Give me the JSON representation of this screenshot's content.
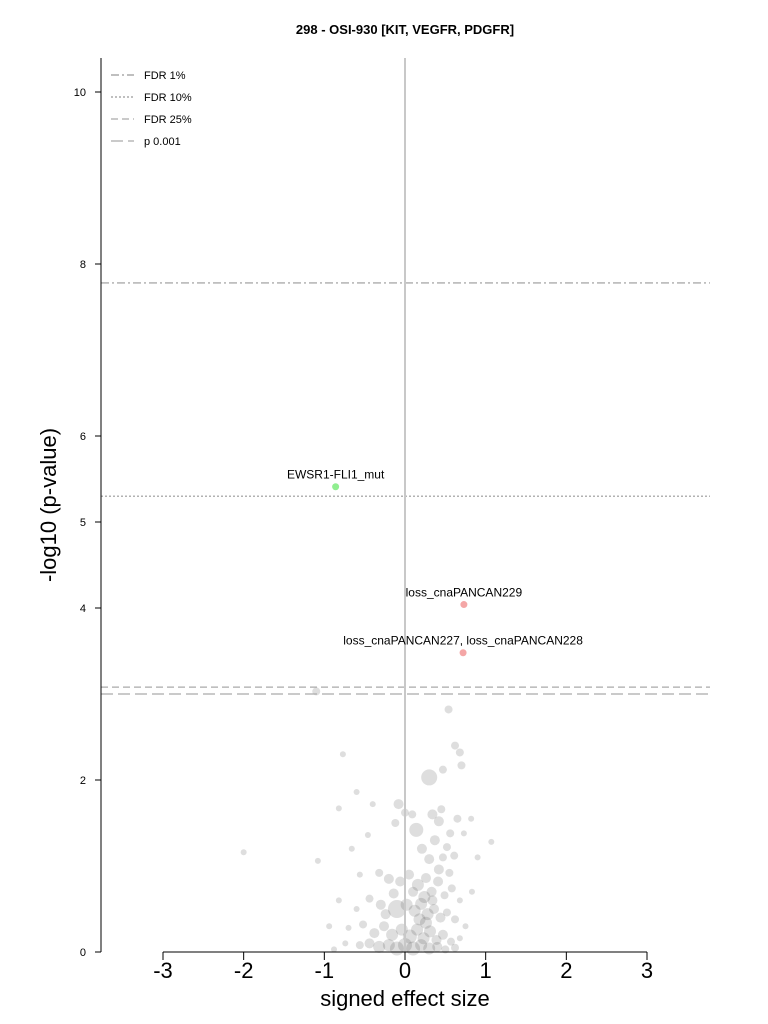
{
  "chart_data": {
    "type": "scatter",
    "title": "298 - OSI-930 [KIT, VEGFR, PDGFR]",
    "xlabel": "signed effect size",
    "ylabel": "-log10 (p-value)",
    "xlim": [
      -3,
      3
    ],
    "ylim": [
      0,
      10.4
    ],
    "xticks": [
      -3,
      -2,
      -1,
      0,
      1,
      2,
      3
    ],
    "yticks": [
      0,
      2,
      4,
      5,
      6,
      8,
      10
    ],
    "vertical_line_at": 0,
    "grid": false,
    "legend_position": "top-left",
    "thresholds": [
      {
        "name": "FDR 1%",
        "y": 7.78,
        "style": "dashdot",
        "color": "#999999"
      },
      {
        "name": "FDR 10%",
        "y": 5.3,
        "style": "dotted",
        "color": "#999999"
      },
      {
        "name": "FDR 25%",
        "y": 3.08,
        "style": "dashed",
        "color": "#aaaaaa"
      },
      {
        "name": "p 0.001",
        "y": 3.0,
        "style": "longdash",
        "color": "#aaaaaa"
      }
    ],
    "highlighted_points": [
      {
        "label": "EWSR1-FLI1_mut",
        "x": -0.86,
        "y": 5.41,
        "color": "#90ee90"
      },
      {
        "label": "loss_cnaPANCAN229",
        "x": 0.73,
        "y": 4.04,
        "color": "#f4a6a6"
      },
      {
        "label": "loss_cnaPANCAN227, loss_cnaPANCAN228",
        "x": 0.72,
        "y": 3.48,
        "color": "#f4a6a6"
      }
    ],
    "background_points": [
      {
        "x": -1.1,
        "y": 3.03,
        "r": 4
      },
      {
        "x": 0.54,
        "y": 2.82,
        "r": 4
      },
      {
        "x": 0.62,
        "y": 2.4,
        "r": 4
      },
      {
        "x": 0.68,
        "y": 2.32,
        "r": 4
      },
      {
        "x": -0.77,
        "y": 2.3,
        "r": 3
      },
      {
        "x": 0.7,
        "y": 2.17,
        "r": 4
      },
      {
        "x": 0.3,
        "y": 2.03,
        "r": 8
      },
      {
        "x": 0.47,
        "y": 2.12,
        "r": 4
      },
      {
        "x": -2.0,
        "y": 1.16,
        "r": 3
      },
      {
        "x": -1.08,
        "y": 1.06,
        "r": 3
      },
      {
        "x": -0.6,
        "y": 1.86,
        "r": 3
      },
      {
        "x": -0.4,
        "y": 1.72,
        "r": 3
      },
      {
        "x": -0.08,
        "y": 1.72,
        "r": 5
      },
      {
        "x": 0.0,
        "y": 1.62,
        "r": 4
      },
      {
        "x": 0.14,
        "y": 1.42,
        "r": 7
      },
      {
        "x": 0.34,
        "y": 1.6,
        "r": 5
      },
      {
        "x": 0.42,
        "y": 1.52,
        "r": 5
      },
      {
        "x": 0.56,
        "y": 1.38,
        "r": 4
      },
      {
        "x": 0.65,
        "y": 1.55,
        "r": 4
      },
      {
        "x": 0.73,
        "y": 1.38,
        "r": 3
      },
      {
        "x": 0.82,
        "y": 1.55,
        "r": 3
      },
      {
        "x": 1.07,
        "y": 1.28,
        "r": 3
      },
      {
        "x": -0.82,
        "y": 1.67,
        "r": 3
      },
      {
        "x": -0.46,
        "y": 1.36,
        "r": 3
      },
      {
        "x": -0.66,
        "y": 1.2,
        "r": 3
      },
      {
        "x": -0.12,
        "y": 1.5,
        "r": 4
      },
      {
        "x": 0.09,
        "y": 1.6,
        "r": 4
      },
      {
        "x": 0.21,
        "y": 1.2,
        "r": 5
      },
      {
        "x": 0.3,
        "y": 1.08,
        "r": 5
      },
      {
        "x": 0.37,
        "y": 1.3,
        "r": 5
      },
      {
        "x": 0.47,
        "y": 1.1,
        "r": 4
      },
      {
        "x": 0.55,
        "y": 0.92,
        "r": 4
      },
      {
        "x": 0.61,
        "y": 1.12,
        "r": 4
      },
      {
        "x": 0.9,
        "y": 1.1,
        "r": 3
      },
      {
        "x": -0.56,
        "y": 0.9,
        "r": 3
      },
      {
        "x": -0.32,
        "y": 0.92,
        "r": 4
      },
      {
        "x": -0.2,
        "y": 0.85,
        "r": 5
      },
      {
        "x": -0.06,
        "y": 0.82,
        "r": 5
      },
      {
        "x": 0.05,
        "y": 0.9,
        "r": 5
      },
      {
        "x": 0.16,
        "y": 0.78,
        "r": 6
      },
      {
        "x": 0.26,
        "y": 0.86,
        "r": 5
      },
      {
        "x": 0.33,
        "y": 0.7,
        "r": 5
      },
      {
        "x": 0.41,
        "y": 0.82,
        "r": 5
      },
      {
        "x": 0.49,
        "y": 0.66,
        "r": 4
      },
      {
        "x": 0.58,
        "y": 0.74,
        "r": 4
      },
      {
        "x": 0.68,
        "y": 0.6,
        "r": 3
      },
      {
        "x": 0.83,
        "y": 0.7,
        "r": 3
      },
      {
        "x": -0.82,
        "y": 0.6,
        "r": 3
      },
      {
        "x": -0.6,
        "y": 0.5,
        "r": 3
      },
      {
        "x": -0.44,
        "y": 0.62,
        "r": 4
      },
      {
        "x": -0.3,
        "y": 0.55,
        "r": 5
      },
      {
        "x": -0.1,
        "y": 0.5,
        "r": 9
      },
      {
        "x": 0.02,
        "y": 0.55,
        "r": 6
      },
      {
        "x": 0.12,
        "y": 0.48,
        "r": 6
      },
      {
        "x": 0.2,
        "y": 0.56,
        "r": 6
      },
      {
        "x": 0.28,
        "y": 0.44,
        "r": 6
      },
      {
        "x": 0.36,
        "y": 0.5,
        "r": 5
      },
      {
        "x": 0.44,
        "y": 0.4,
        "r": 5
      },
      {
        "x": 0.52,
        "y": 0.46,
        "r": 4
      },
      {
        "x": 0.62,
        "y": 0.38,
        "r": 4
      },
      {
        "x": 0.75,
        "y": 0.3,
        "r": 3
      },
      {
        "x": -0.94,
        "y": 0.3,
        "r": 3
      },
      {
        "x": -0.7,
        "y": 0.28,
        "r": 3
      },
      {
        "x": -0.52,
        "y": 0.32,
        "r": 4
      },
      {
        "x": -0.38,
        "y": 0.22,
        "r": 5
      },
      {
        "x": -0.26,
        "y": 0.3,
        "r": 5
      },
      {
        "x": -0.16,
        "y": 0.2,
        "r": 6
      },
      {
        "x": -0.04,
        "y": 0.26,
        "r": 6
      },
      {
        "x": 0.06,
        "y": 0.18,
        "r": 7
      },
      {
        "x": 0.15,
        "y": 0.26,
        "r": 6
      },
      {
        "x": 0.23,
        "y": 0.16,
        "r": 6
      },
      {
        "x": 0.31,
        "y": 0.24,
        "r": 6
      },
      {
        "x": 0.39,
        "y": 0.14,
        "r": 5
      },
      {
        "x": 0.47,
        "y": 0.2,
        "r": 5
      },
      {
        "x": 0.57,
        "y": 0.12,
        "r": 4
      },
      {
        "x": 0.68,
        "y": 0.16,
        "r": 3
      },
      {
        "x": -0.74,
        "y": 0.1,
        "r": 3
      },
      {
        "x": -0.56,
        "y": 0.08,
        "r": 4
      },
      {
        "x": -0.44,
        "y": 0.1,
        "r": 5
      },
      {
        "x": -0.32,
        "y": 0.06,
        "r": 6
      },
      {
        "x": -0.2,
        "y": 0.08,
        "r": 6
      },
      {
        "x": -0.1,
        "y": 0.04,
        "r": 7
      },
      {
        "x": 0.0,
        "y": 0.08,
        "r": 7
      },
      {
        "x": 0.1,
        "y": 0.04,
        "r": 7
      },
      {
        "x": 0.2,
        "y": 0.08,
        "r": 6
      },
      {
        "x": 0.3,
        "y": 0.04,
        "r": 6
      },
      {
        "x": 0.4,
        "y": 0.06,
        "r": 5
      },
      {
        "x": 0.5,
        "y": 0.03,
        "r": 4
      },
      {
        "x": 0.62,
        "y": 0.05,
        "r": 4
      },
      {
        "x": -0.88,
        "y": 0.03,
        "r": 3
      },
      {
        "x": 0.26,
        "y": 0.34,
        "r": 6
      },
      {
        "x": 0.34,
        "y": 0.6,
        "r": 5
      },
      {
        "x": 0.42,
        "y": 0.96,
        "r": 5
      },
      {
        "x": 0.24,
        "y": 0.64,
        "r": 6
      },
      {
        "x": 0.18,
        "y": 0.38,
        "r": 6
      },
      {
        "x": 0.1,
        "y": 0.7,
        "r": 5
      },
      {
        "x": -0.14,
        "y": 0.68,
        "r": 5
      },
      {
        "x": -0.24,
        "y": 0.44,
        "r": 5
      },
      {
        "x": 0.45,
        "y": 1.66,
        "r": 4
      },
      {
        "x": 0.52,
        "y": 1.22,
        "r": 4
      }
    ]
  }
}
